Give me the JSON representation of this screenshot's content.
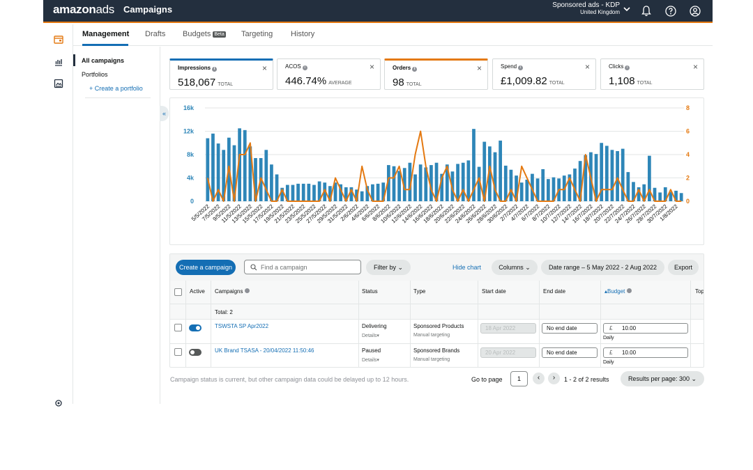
{
  "header": {
    "logo_main": "amazon",
    "logo_suffix": "ads",
    "app_title": "Campaigns",
    "account_line1": "Sponsored ads - KDP",
    "account_line2": "United Kingdom"
  },
  "tabs": [
    {
      "label": "Management"
    },
    {
      "label": "Drafts"
    },
    {
      "label": "Budgets",
      "badge": "Beta"
    },
    {
      "label": "Targeting"
    },
    {
      "label": "History"
    }
  ],
  "subnav": {
    "all_campaigns": "All campaigns",
    "portfolios": "Portfolios",
    "create_portfolio": "+ Create a portfolio"
  },
  "metrics": [
    {
      "label": "Impressions",
      "value": "518,067",
      "unit": "TOTAL",
      "accent": "#146eb4"
    },
    {
      "label": "ACOS",
      "value": "446.74%",
      "unit": "AVERAGE",
      "accent": ""
    },
    {
      "label": "Orders",
      "value": "98",
      "unit": "TOTAL",
      "accent": "#e47911"
    },
    {
      "label": "Spend",
      "value": "£1,009.82",
      "unit": "TOTAL",
      "accent": ""
    },
    {
      "label": "Clicks",
      "value": "1,108",
      "unit": "TOTAL",
      "accent": ""
    }
  ],
  "chart_data": {
    "type": "bar",
    "x": [
      "5/5/2022",
      "6/5/2022",
      "7/5/2022",
      "8/5/2022",
      "9/5/2022",
      "10/5/2022",
      "11/5/2022",
      "12/5/2022",
      "13/5/2022",
      "14/5/2022",
      "15/5/2022",
      "16/5/2022",
      "17/5/2022",
      "18/5/2022",
      "19/5/2022",
      "20/5/2022",
      "21/5/2022",
      "22/5/2022",
      "23/5/2022",
      "24/5/2022",
      "25/5/2022",
      "26/5/2022",
      "27/5/2022",
      "28/5/2022",
      "29/5/2022",
      "30/5/2022",
      "31/5/2022",
      "1/6/2022",
      "2/6/2022",
      "3/6/2022",
      "4/6/2022",
      "5/6/2022",
      "6/6/2022",
      "7/6/2022",
      "8/6/2022",
      "9/6/2022",
      "10/6/2022",
      "11/6/2022",
      "12/6/2022",
      "13/6/2022",
      "14/6/2022",
      "15/6/2022",
      "16/6/2022",
      "17/6/2022",
      "18/6/2022",
      "19/6/2022",
      "20/6/2022",
      "21/6/2022",
      "22/6/2022",
      "23/6/2022",
      "24/6/2022",
      "25/6/2022",
      "26/6/2022",
      "27/6/2022",
      "28/6/2022",
      "29/6/2022",
      "30/6/2022",
      "1/7/2022",
      "2/7/2022",
      "3/7/2022",
      "4/7/2022",
      "5/7/2022",
      "6/7/2022",
      "7/7/2022",
      "8/7/2022",
      "9/7/2022",
      "10/7/2022",
      "11/7/2022",
      "12/7/2022",
      "13/7/2022",
      "14/7/2022",
      "15/7/2022",
      "16/7/2022",
      "17/7/2022",
      "18/7/2022",
      "19/7/2022",
      "20/7/2022",
      "21/7/2022",
      "22/7/2022",
      "23/7/2022",
      "24/7/2022",
      "25/7/2022",
      "26/7/2022",
      "27/7/2022",
      "28/7/2022",
      "29/7/2022",
      "30/7/2022",
      "31/7/2022",
      "1/8/2022",
      "2/8/2022"
    ],
    "tick_labels": [
      "5/5/2022",
      "7/5/2022",
      "9/5/2022",
      "11/5/2022",
      "13/5/2022",
      "15/5/2022",
      "17/5/2022",
      "19/5/2022",
      "21/5/2022",
      "23/5/2022",
      "25/5/2022",
      "27/5/2022",
      "29/5/2022",
      "31/5/2022",
      "2/6/2022",
      "4/6/2022",
      "6/6/2022",
      "8/6/2022",
      "10/6/2022",
      "12/6/2022",
      "14/6/2022",
      "16/6/2022",
      "18/6/2022",
      "20/6/2022",
      "22/6/2022",
      "24/6/2022",
      "26/6/2022",
      "28/6/2022",
      "30/6/2022",
      "2/7/2022",
      "4/7/2022",
      "6/7/2022",
      "8/7/2022",
      "10/7/2022",
      "12/7/2022",
      "14/7/2022",
      "16/7/2022",
      "18/7/2022",
      "20/7/2022",
      "22/7/2022",
      "24/7/2022",
      "26/7/2022",
      "28/7/2022",
      "30/7/2022",
      "1/8/2022"
    ],
    "series": [
      {
        "name": "Impressions",
        "type": "bar",
        "axis": "left",
        "color": "#2e86b8",
        "values": [
          10800,
          11600,
          9900,
          8800,
          10900,
          9600,
          12500,
          12200,
          9400,
          7400,
          7400,
          8800,
          6300,
          4600,
          2300,
          2800,
          2800,
          3000,
          3000,
          3000,
          2800,
          3400,
          3200,
          2600,
          3200,
          2900,
          2400,
          2400,
          2000,
          1700,
          2600,
          2900,
          3000,
          3200,
          6200,
          6000,
          5200,
          5700,
          6600,
          4600,
          6300,
          5800,
          6200,
          6600,
          4700,
          6300,
          5100,
          6400,
          6600,
          7000,
          12400,
          5900,
          10200,
          9400,
          8400,
          10400,
          6100,
          5400,
          4400,
          3200,
          3700,
          4700,
          3900,
          5500,
          3800,
          4100,
          3900,
          4400,
          4600,
          5600,
          6900,
          7900,
          8400,
          8100,
          10000,
          9500,
          8800,
          8600,
          9000,
          5000,
          3300,
          2400,
          2900,
          7800,
          2300,
          1500,
          2400,
          1600,
          1800,
          1400
        ]
      },
      {
        "name": "Orders",
        "type": "line",
        "axis": "right",
        "color": "#e47911",
        "values": [
          2,
          0,
          1,
          0,
          3,
          0,
          4,
          4,
          5,
          0,
          2,
          1,
          0,
          0,
          1,
          0,
          0,
          0,
          0,
          0,
          0,
          0,
          1,
          0,
          2,
          1,
          0,
          1,
          0,
          3,
          1,
          0,
          0,
          0,
          2,
          2,
          3,
          1,
          1,
          4,
          6,
          3,
          1,
          0,
          2,
          3,
          1,
          0,
          1,
          0,
          1,
          2,
          0,
          3,
          1,
          0,
          0,
          1,
          0,
          3,
          2,
          1,
          0,
          0,
          0,
          0,
          1,
          1,
          2,
          1,
          0,
          4,
          2,
          0,
          1,
          1,
          1,
          2,
          1,
          0,
          0,
          1,
          0,
          1,
          0,
          0,
          0,
          1,
          0,
          0
        ]
      }
    ],
    "left_axis": {
      "ticks": [
        "0",
        "4k",
        "8k",
        "12k",
        "16k"
      ],
      "range": [
        0,
        16000
      ]
    },
    "right_axis": {
      "ticks": [
        "0",
        "2",
        "4",
        "6",
        "8"
      ],
      "range": [
        0,
        8
      ]
    }
  },
  "toolbar": {
    "create": "Create a campaign",
    "search_placeholder": "Find a campaign",
    "filter": "Filter by",
    "hide_chart": "Hide chart",
    "columns": "Columns",
    "date_range": "Date range – 5 May 2022 - 2 Aug 2022",
    "export": "Export"
  },
  "table": {
    "headers": {
      "active": "Active",
      "campaigns": "Campaigns",
      "status": "Status",
      "type": "Type",
      "start": "Start date",
      "end": "End date",
      "budget": "Budget",
      "top": "Top"
    },
    "total": "Total: 2",
    "rows": [
      {
        "name": "TSWSTA SP Apr2022",
        "active": true,
        "status": "Delivering",
        "details": "Details",
        "type": "Sponsored Products",
        "targeting": "Manual targeting",
        "start": "18 Apr 2022",
        "end": "No end date",
        "currency": "£",
        "budget": "10.00",
        "period": "Daily"
      },
      {
        "name": "UK Brand TSASA - 20/04/2022 11:50:46",
        "active": false,
        "status": "Paused",
        "details": "Details",
        "type": "Sponsored Brands",
        "targeting": "Manual targeting",
        "start": "20 Apr 2022",
        "end": "No end date",
        "currency": "£",
        "budget": "10.00",
        "period": "Daily"
      }
    ]
  },
  "footer": {
    "note": "Campaign status is current, but other campaign data could be delayed up to 12 hours.",
    "goto": "Go to page",
    "page": "1",
    "results": "1 - 2 of 2 results",
    "rpp": "Results per page: 300"
  }
}
